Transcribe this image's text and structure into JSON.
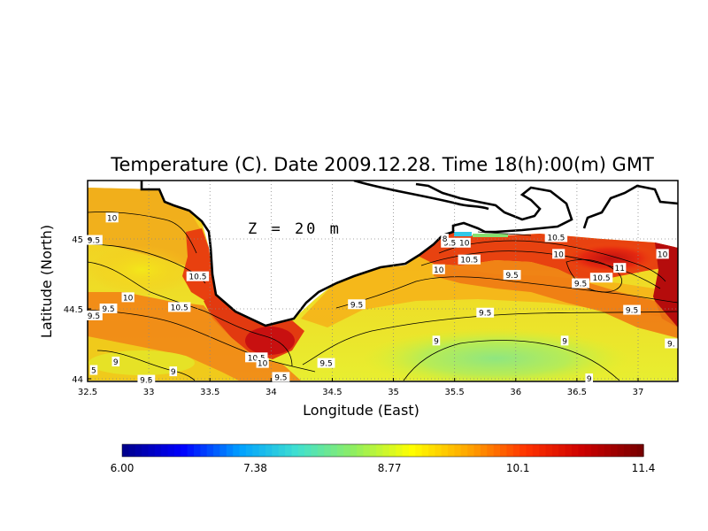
{
  "chart_data": {
    "type": "heatmap",
    "title": "Temperature (C). Date 2009.12.28. Time 18(h):00(m) GMT",
    "xlabel": "Longitude (East)",
    "ylabel": "Latitude (North)",
    "annotation": "Z = 20 m",
    "xlim": [
      32.5,
      37.3
    ],
    "ylim": [
      44.0,
      45.3
    ],
    "x_ticks": [
      "32.5",
      "33",
      "33.5",
      "34",
      "34.5",
      "35",
      "35.5",
      "36",
      "36.5",
      "37"
    ],
    "y_ticks": [
      "44",
      "44.5",
      "45"
    ],
    "grid": true,
    "colorbar": {
      "min": 6.0,
      "max": 11.4,
      "tick_labels": [
        "6.00",
        "7.38",
        "8.77",
        "10.1",
        "11.4"
      ],
      "colors": [
        "#00008f",
        "#0000ff",
        "#00a0ff",
        "#40e0d0",
        "#90ee60",
        "#ffff00",
        "#ffa500",
        "#ff3300",
        "#cc0000",
        "#7a0000"
      ]
    },
    "contour_labels": [
      {
        "lon": 32.7,
        "lat": 45.15,
        "text": "10"
      },
      {
        "lon": 32.55,
        "lat": 44.99,
        "text": "9.5"
      },
      {
        "lon": 33.4,
        "lat": 44.73,
        "text": "10.5"
      },
      {
        "lon": 32.83,
        "lat": 44.58,
        "text": "10"
      },
      {
        "lon": 33.25,
        "lat": 44.51,
        "text": "10.5"
      },
      {
        "lon": 32.67,
        "lat": 44.5,
        "text": "9.5"
      },
      {
        "lon": 32.55,
        "lat": 44.45,
        "text": "9.5"
      },
      {
        "lon": 32.73,
        "lat": 44.12,
        "text": "9"
      },
      {
        "lon": 33.2,
        "lat": 44.05,
        "text": "9"
      },
      {
        "lon": 32.55,
        "lat": 44.06,
        "text": "5"
      },
      {
        "lon": 32.98,
        "lat": 43.99,
        "text": "9.5"
      },
      {
        "lon": 33.88,
        "lat": 44.15,
        "text": "10.5"
      },
      {
        "lon": 33.93,
        "lat": 44.11,
        "text": "10"
      },
      {
        "lon": 34.08,
        "lat": 44.01,
        "text": "9.5"
      },
      {
        "lon": 34.45,
        "lat": 44.11,
        "text": "9.5"
      },
      {
        "lon": 34.7,
        "lat": 44.53,
        "text": "9.5"
      },
      {
        "lon": 35.37,
        "lat": 44.78,
        "text": "10"
      },
      {
        "lon": 35.62,
        "lat": 44.85,
        "text": "10.5"
      },
      {
        "lon": 35.46,
        "lat": 44.97,
        "text": "9.5"
      },
      {
        "lon": 35.58,
        "lat": 44.97,
        "text": "10"
      },
      {
        "lon": 35.42,
        "lat": 45.0,
        "text": "8"
      },
      {
        "lon": 35.97,
        "lat": 44.74,
        "text": "9.5"
      },
      {
        "lon": 35.75,
        "lat": 44.47,
        "text": "9.5"
      },
      {
        "lon": 35.35,
        "lat": 44.27,
        "text": "9"
      },
      {
        "lon": 36.33,
        "lat": 45.01,
        "text": "10.5"
      },
      {
        "lon": 36.35,
        "lat": 44.89,
        "text": "10"
      },
      {
        "lon": 36.53,
        "lat": 44.68,
        "text": "9.5"
      },
      {
        "lon": 36.7,
        "lat": 44.72,
        "text": "10.5"
      },
      {
        "lon": 36.85,
        "lat": 44.79,
        "text": "11"
      },
      {
        "lon": 37.2,
        "lat": 44.89,
        "text": "10"
      },
      {
        "lon": 36.95,
        "lat": 44.49,
        "text": "9.5"
      },
      {
        "lon": 36.4,
        "lat": 44.27,
        "text": "9"
      },
      {
        "lon": 36.6,
        "lat": 44.0,
        "text": "9"
      },
      {
        "lon": 37.27,
        "lat": 44.25,
        "text": "9."
      }
    ]
  }
}
